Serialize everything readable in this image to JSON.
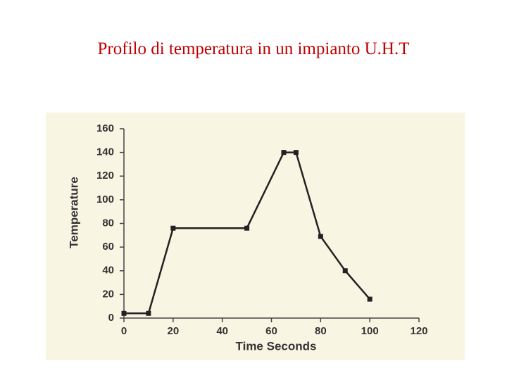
{
  "chart_data": {
    "type": "line",
    "title": "Profilo di temperatura in un impianto U.H.T",
    "x_label": "Time Seconds",
    "y_label": "Temperature",
    "x": [
      0,
      10,
      20,
      50,
      65,
      70,
      80,
      90,
      100
    ],
    "series": [
      {
        "color": "#222222",
        "values": [
          4,
          4,
          76,
          76,
          140,
          140,
          69,
          40,
          16
        ]
      }
    ],
    "xlim": [
      0,
      120
    ],
    "xticks": [
      0,
      20,
      40,
      60,
      80,
      100,
      120
    ],
    "ylim": [
      0,
      160
    ],
    "yticks": [
      0,
      20,
      40,
      60,
      80,
      100,
      120,
      140,
      160
    ],
    "grid": false
  }
}
